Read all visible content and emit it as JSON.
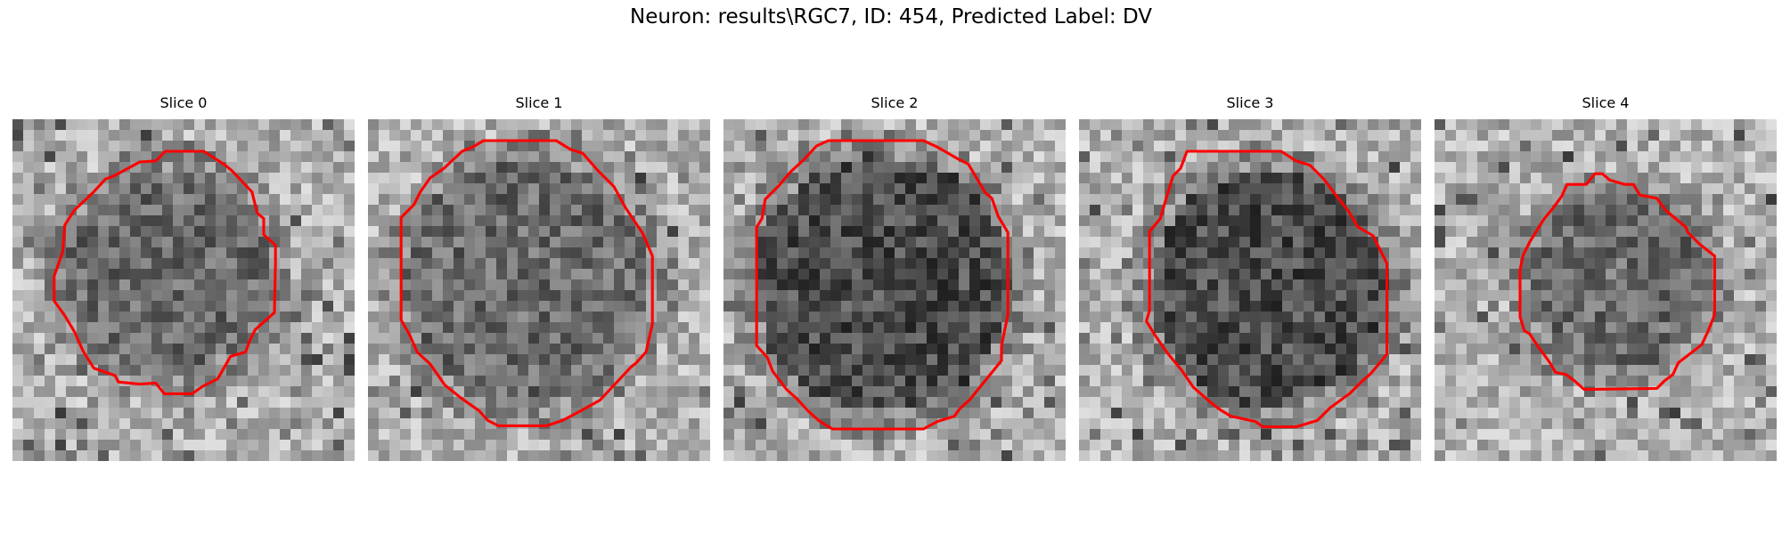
{
  "figure": {
    "suptitle": "Neuron: results\\RGC7, ID: 454, Predicted Label: DV",
    "contour_color": "#ff0000",
    "colormap": "gray",
    "panels": [
      {
        "title": "Slice 0",
        "cell_darkness": "medium"
      },
      {
        "title": "Slice 1",
        "cell_darkness": "medium"
      },
      {
        "title": "Slice 2",
        "cell_darkness": "dark"
      },
      {
        "title": "Slice 3",
        "cell_darkness": "dark"
      },
      {
        "title": "Slice 4",
        "cell_darkness": "medium"
      }
    ]
  }
}
